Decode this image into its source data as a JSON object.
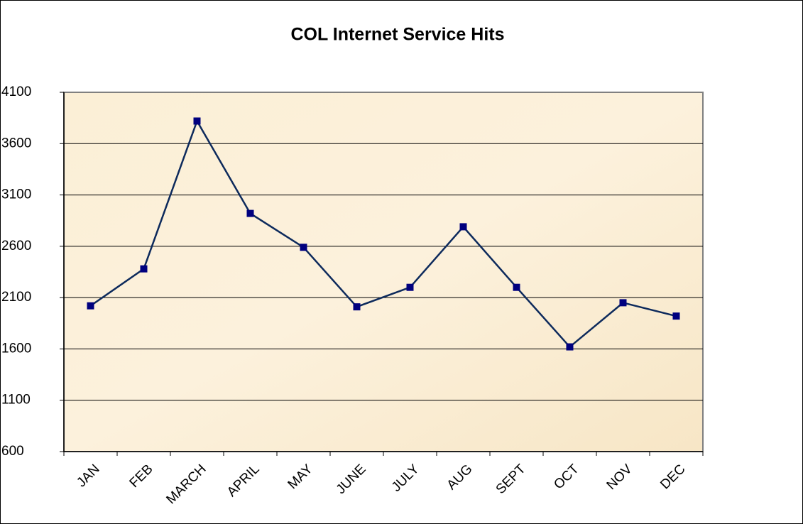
{
  "chart_data": {
    "type": "line",
    "title": "COL Internet Service Hits",
    "categories": [
      "JAN",
      "FEB",
      "MARCH",
      "APRIL",
      "MAY",
      "JUNE",
      "JULY",
      "AUG",
      "SEPT",
      "OCT",
      "NOV",
      "DEC"
    ],
    "series": [
      {
        "name": "Hits",
        "color": "#0d2a5c",
        "values": [
          2020,
          2380,
          3820,
          2920,
          2590,
          2010,
          2200,
          2790,
          2200,
          1620,
          2050,
          1920
        ]
      }
    ],
    "ylim": [
      600,
      4100
    ],
    "yticks": [
      600,
      1100,
      1600,
      2100,
      2600,
      3100,
      3600,
      4100
    ],
    "grid": true
  }
}
